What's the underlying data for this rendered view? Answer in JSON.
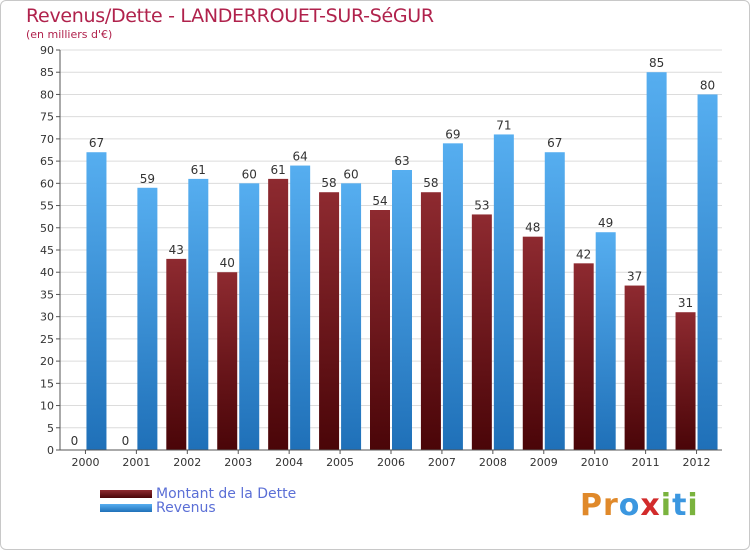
{
  "header": {
    "title": "Revenus/Dette - LANDERROUET-SUR-SéGUR",
    "subtitle": "(en milliers d'€)"
  },
  "chart_data": {
    "type": "bar",
    "categories": [
      "2000",
      "2001",
      "2002",
      "2003",
      "2004",
      "2005",
      "2006",
      "2007",
      "2008",
      "2009",
      "2010",
      "2011",
      "2012"
    ],
    "series": [
      {
        "name": "Montant de la Dette",
        "color": "#7a1a1f",
        "values": [
          0,
          0,
          43,
          40,
          61,
          58,
          54,
          58,
          53,
          48,
          42,
          37,
          31
        ]
      },
      {
        "name": "Revenus",
        "color": "#3b97e0",
        "values": [
          67,
          59,
          61,
          60,
          64,
          60,
          63,
          69,
          71,
          67,
          49,
          85,
          80
        ]
      }
    ],
    "ylim": [
      0,
      90
    ],
    "yticks": [
      0,
      5,
      10,
      15,
      20,
      25,
      30,
      35,
      40,
      45,
      50,
      55,
      60,
      65,
      70,
      75,
      80,
      85,
      90
    ],
    "grid": true,
    "legend_position": "bottom-left"
  },
  "legend": {
    "debt_label": "Montant de la Dette",
    "revenue_label": "Revenus"
  },
  "logo": {
    "letters": [
      "P",
      "r",
      "o",
      "x",
      "i",
      "t",
      "i"
    ],
    "colors": [
      "#e0892a",
      "#e0892a",
      "#3b97e0",
      "#d22b2b",
      "#7ab33e",
      "#3b97e0",
      "#7ab33e"
    ]
  }
}
